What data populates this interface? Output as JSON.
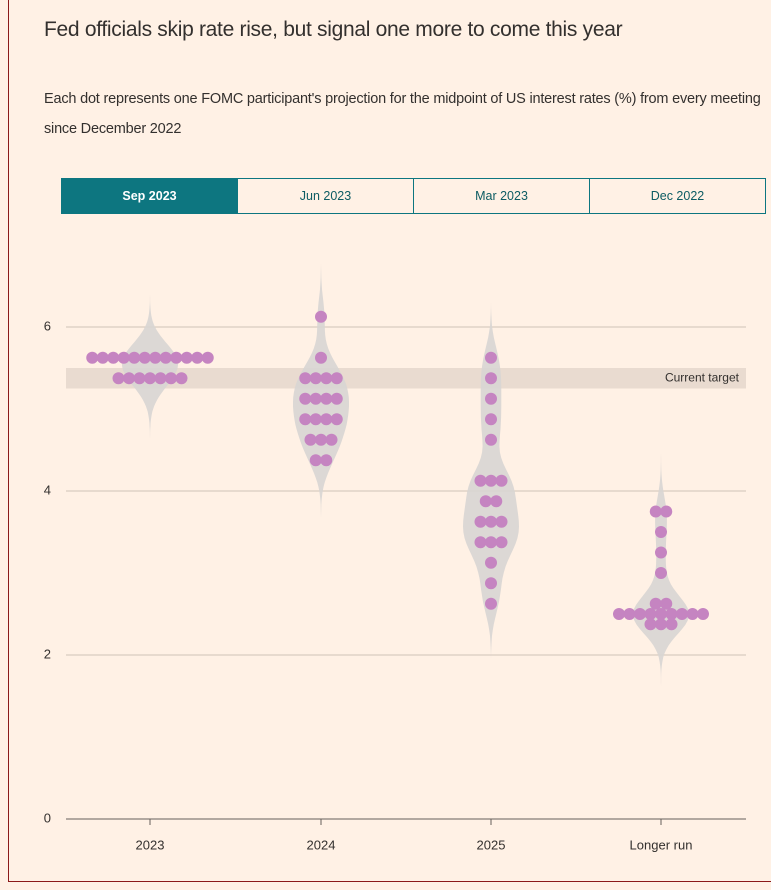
{
  "chart_data": {
    "type": "dotplot",
    "title": "Fed officials skip rate rise, but signal one more to come this year",
    "subtitle": "Each dot represents one FOMC participant's projection for the midpoint of US interest rates (%) from every meeting since December 2022",
    "tabs": [
      "Sep 2023",
      "Jun 2023",
      "Mar 2023",
      "Dec 2022"
    ],
    "active_tab": 0,
    "categories": [
      "2023",
      "2024",
      "2025",
      "Longer run"
    ],
    "values": [
      [
        5.625,
        5.625,
        5.625,
        5.625,
        5.625,
        5.625,
        5.625,
        5.625,
        5.625,
        5.625,
        5.625,
        5.625,
        5.375,
        5.375,
        5.375,
        5.375,
        5.375,
        5.375,
        5.375
      ],
      [
        6.125,
        5.625,
        5.375,
        5.375,
        5.375,
        5.375,
        5.125,
        5.125,
        5.125,
        5.125,
        4.875,
        4.875,
        4.875,
        4.875,
        4.625,
        4.625,
        4.625,
        4.375,
        4.375
      ],
      [
        5.625,
        5.375,
        5.125,
        4.875,
        4.625,
        4.125,
        4.125,
        4.125,
        3.875,
        3.875,
        3.625,
        3.625,
        3.625,
        3.375,
        3.375,
        3.375,
        3.125,
        2.875,
        2.625
      ],
      [
        3.75,
        3.75,
        3.5,
        3.25,
        3.0,
        2.625,
        2.625,
        2.5,
        2.5,
        2.5,
        2.5,
        2.5,
        2.5,
        2.5,
        2.5,
        2.5,
        2.375,
        2.375,
        2.375
      ]
    ],
    "color": "#c584c1",
    "target_band": [
      5.25,
      5.5
    ],
    "target_label": "Current target",
    "ylim": [
      0,
      7
    ],
    "yticks": [
      0,
      2,
      4,
      6
    ],
    "grid": true
  }
}
